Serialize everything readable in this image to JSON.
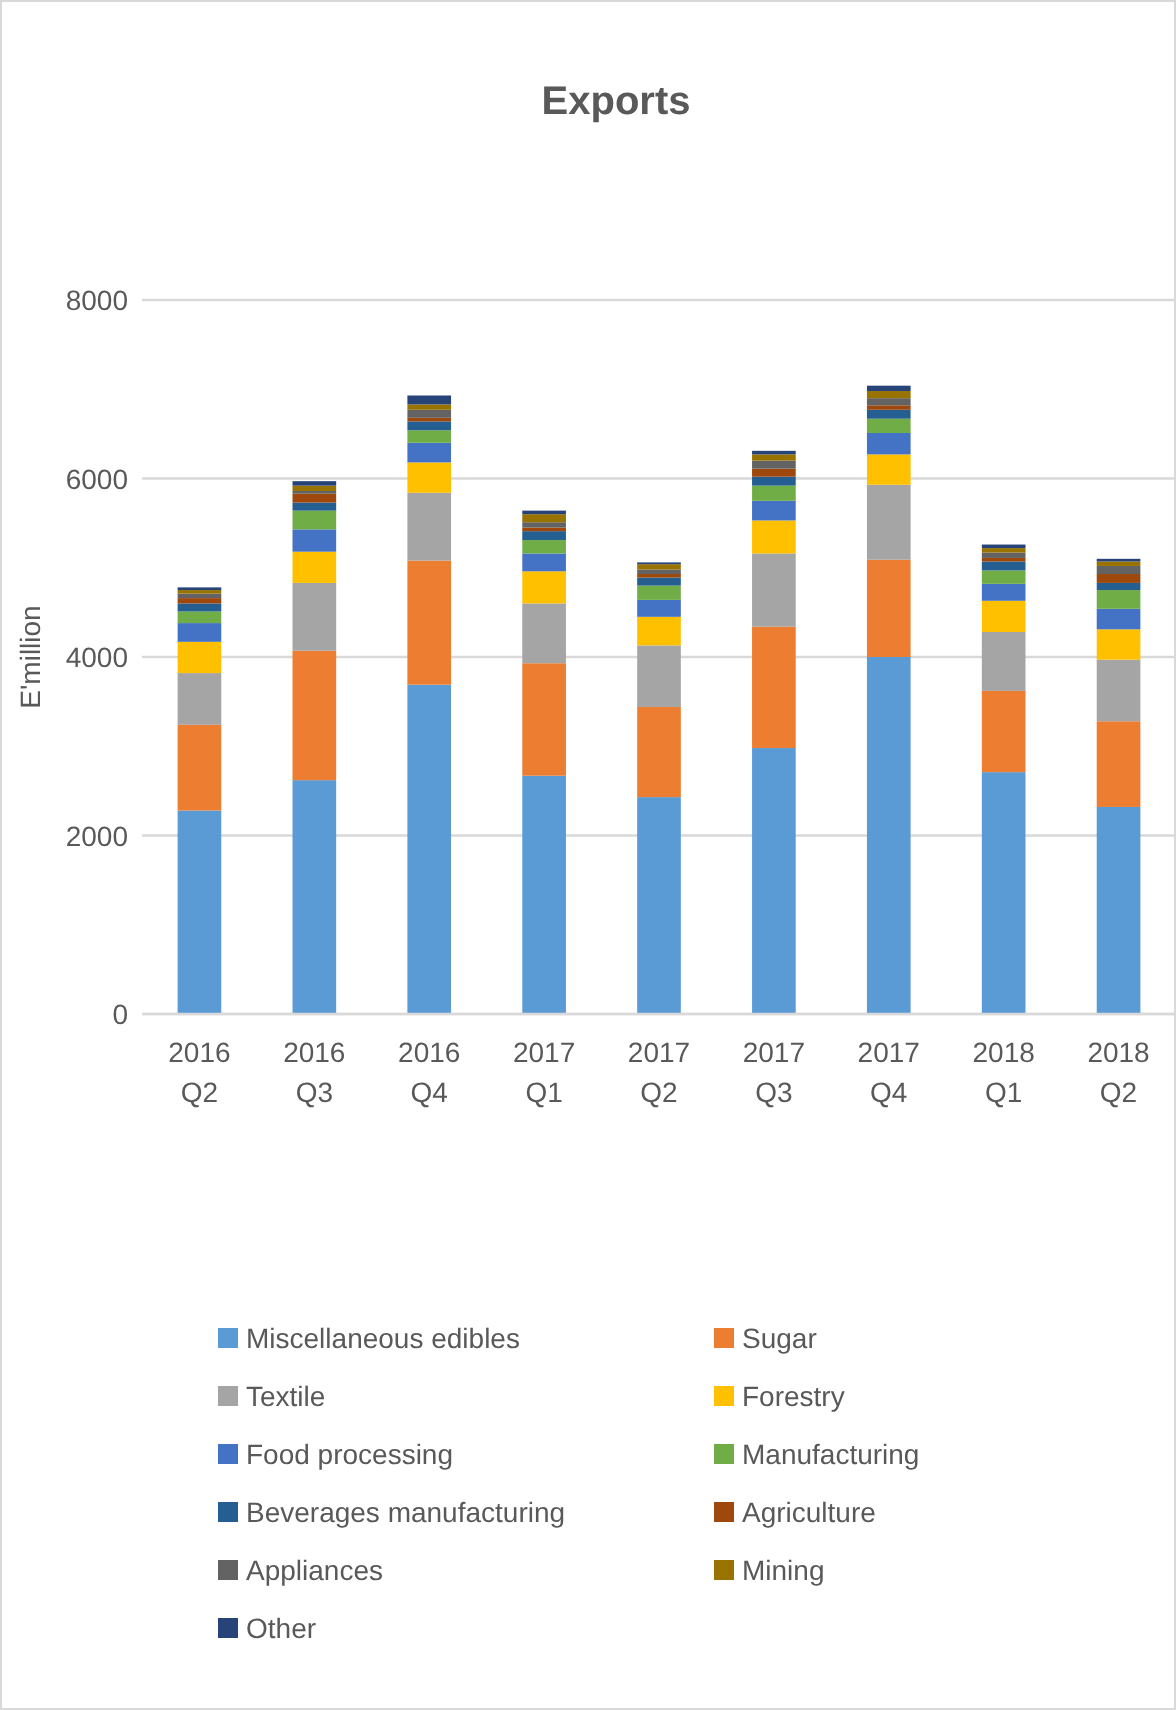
{
  "chart_data": {
    "type": "bar",
    "stacked": true,
    "title": "Exports",
    "ylabel": "E'million",
    "categories": [
      "2016 Q2",
      "2016 Q3",
      "2016 Q4",
      "2017 Q1",
      "2017 Q2",
      "2017 Q3",
      "2017 Q4",
      "2018 Q1",
      "2018 Q2"
    ],
    "ylim": [
      0,
      8000
    ],
    "yticks": [
      0,
      2000,
      4000,
      6000,
      8000
    ],
    "grid": "y",
    "legend": "bottom",
    "series": [
      {
        "name": "Miscellaneous edibles",
        "color": "#5b9bd5",
        "values": [
          2280,
          2620,
          3690,
          2670,
          2430,
          2980,
          4000,
          2710,
          2320
        ]
      },
      {
        "name": "Sugar",
        "color": "#ed7d31",
        "values": [
          960,
          1450,
          1390,
          1260,
          1010,
          1360,
          1090,
          910,
          960
        ]
      },
      {
        "name": "Textile",
        "color": "#a5a5a5",
        "values": [
          580,
          760,
          760,
          670,
          690,
          820,
          840,
          660,
          690
        ]
      },
      {
        "name": "Forestry",
        "color": "#ffc000",
        "values": [
          350,
          350,
          340,
          360,
          320,
          370,
          340,
          350,
          340
        ]
      },
      {
        "name": "Food processing",
        "color": "#4472c4",
        "values": [
          210,
          250,
          220,
          200,
          190,
          220,
          240,
          190,
          230
        ]
      },
      {
        "name": "Manufacturing",
        "color": "#70ad47",
        "values": [
          130,
          210,
          140,
          150,
          160,
          170,
          160,
          150,
          210
        ]
      },
      {
        "name": "Beverages manufacturing",
        "color": "#255e91",
        "values": [
          90,
          90,
          100,
          100,
          90,
          100,
          100,
          100,
          80
        ]
      },
      {
        "name": "Agriculture",
        "color": "#9e480e",
        "values": [
          60,
          100,
          40,
          40,
          40,
          90,
          50,
          40,
          100
        ]
      },
      {
        "name": "Appliances",
        "color": "#636363",
        "values": [
          50,
          30,
          90,
          60,
          50,
          90,
          80,
          60,
          90
        ]
      },
      {
        "name": "Mining",
        "color": "#997300",
        "values": [
          40,
          60,
          60,
          90,
          60,
          70,
          80,
          50,
          50
        ]
      },
      {
        "name": "Other",
        "color": "#264478",
        "values": [
          30,
          50,
          100,
          40,
          20,
          40,
          60,
          40,
          30
        ]
      }
    ]
  }
}
